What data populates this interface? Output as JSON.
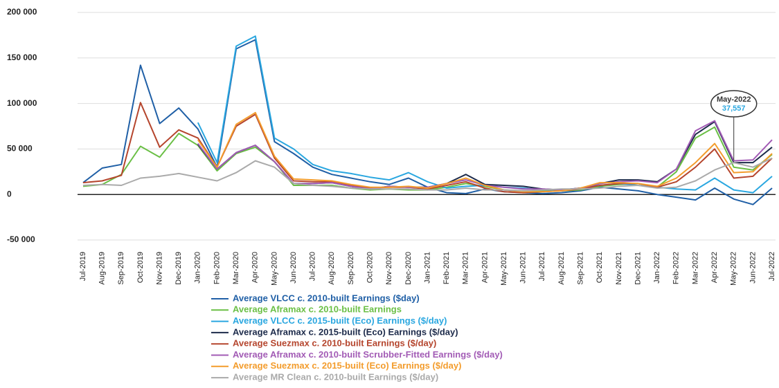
{
  "chart_data": {
    "type": "line",
    "categories": [
      "Jul-2019",
      "Aug-2019",
      "Sep-2019",
      "Oct-2019",
      "Nov-2019",
      "Dec-2019",
      "Jan-2020",
      "Feb-2020",
      "Mar-2020",
      "Apr-2020",
      "May-2020",
      "Jun-2020",
      "Jul-2020",
      "Aug-2020",
      "Sep-2020",
      "Oct-2020",
      "Nov-2020",
      "Dec-2020",
      "Jan-2021",
      "Feb-2021",
      "Mar-2021",
      "Apr-2021",
      "May-2021",
      "Jun-2021",
      "Jul-2021",
      "Aug-2021",
      "Sep-2021",
      "Oct-2021",
      "Nov-2021",
      "Dec-2021",
      "Jan-2022",
      "Feb-2022",
      "Mar-2022",
      "Apr-2022",
      "May-2022",
      "Jun-2022",
      "Jul-2022"
    ],
    "series": [
      {
        "name": "Average VLCC c. 2010-built Earnings ($day)",
        "color": "#1f5fa6",
        "values": [
          13000,
          29000,
          33000,
          142000,
          78000,
          95000,
          72000,
          30000,
          160000,
          170000,
          58000,
          45000,
          30000,
          22000,
          18000,
          14000,
          11000,
          18000,
          8000,
          2000,
          1000,
          6000,
          3000,
          2000,
          1000,
          2000,
          4000,
          8000,
          6000,
          4000,
          0,
          -3000,
          -6000,
          7000,
          -5000,
          -11000,
          7000
        ]
      },
      {
        "name": "Average Aframax c. 2010-built Earnings",
        "color": "#6abf45",
        "values": [
          9000,
          11000,
          22000,
          53000,
          41000,
          67000,
          54000,
          26000,
          45000,
          52000,
          36000,
          10000,
          10000,
          10000,
          7000,
          5000,
          6000,
          5000,
          5000,
          8000,
          12000,
          9000,
          5000,
          4000,
          4000,
          4000,
          5000,
          9000,
          11000,
          12000,
          8000,
          25000,
          62000,
          74000,
          30000,
          27000,
          44000
        ]
      },
      {
        "name": "Average VLCC c. 2015-built (Eco) Earnings ($/day)",
        "color": "#2aa7e0",
        "values": [
          null,
          null,
          null,
          null,
          null,
          null,
          79000,
          35000,
          163000,
          174000,
          62000,
          50000,
          33000,
          26000,
          23000,
          19000,
          16000,
          24000,
          14000,
          7000,
          9000,
          10000,
          8000,
          7000,
          5000,
          5000,
          7000,
          10000,
          12000,
          10000,
          8000,
          6000,
          5000,
          18000,
          5000,
          2000,
          20000
        ]
      },
      {
        "name": "Average Aframax c. 2015-built (Eco) Earnings ($/day)",
        "color": "#1c2a4a",
        "values": [
          null,
          null,
          null,
          null,
          null,
          null,
          55000,
          28000,
          46000,
          54000,
          36000,
          12000,
          12000,
          13000,
          9000,
          6000,
          9000,
          8000,
          8000,
          12000,
          22000,
          11000,
          10000,
          9000,
          6000,
          5000,
          7000,
          12000,
          16000,
          16000,
          14000,
          28000,
          66000,
          80000,
          35000,
          35000,
          52000
        ]
      },
      {
        "name": "Average Suezmax c. 2010-built Earnings ($/day)",
        "color": "#b5452d",
        "values": [
          13000,
          15000,
          21000,
          101000,
          52000,
          71000,
          62000,
          30000,
          75000,
          88000,
          40000,
          15000,
          14000,
          14000,
          10000,
          7000,
          8000,
          8000,
          6000,
          10000,
          14000,
          7000,
          3000,
          2000,
          3000,
          4000,
          6000,
          10000,
          12000,
          12000,
          8000,
          14000,
          30000,
          50000,
          18000,
          20000,
          40000
        ]
      },
      {
        "name": "Average Aframax c. 2010-built Scrubber-Fitted Earnings ($/day)",
        "color": "#a25bb5",
        "values": [
          null,
          null,
          null,
          null,
          null,
          null,
          56000,
          28000,
          46000,
          54000,
          36000,
          12000,
          12000,
          13000,
          9000,
          6000,
          9000,
          8000,
          8000,
          12000,
          16000,
          10000,
          8000,
          6000,
          6000,
          5000,
          7000,
          12000,
          14000,
          15000,
          13000,
          28000,
          70000,
          81000,
          37000,
          38000,
          60000
        ]
      },
      {
        "name": "Average Suezmax c. 2015-built (Eco) Earnings ($/day)",
        "color": "#f39c2c",
        "values": [
          null,
          null,
          null,
          null,
          null,
          null,
          60000,
          30000,
          77000,
          90000,
          42000,
          17000,
          16000,
          15000,
          11000,
          8000,
          8000,
          9000,
          7000,
          12000,
          18000,
          10000,
          5000,
          3000,
          3000,
          4000,
          7000,
          13000,
          13000,
          12000,
          9000,
          18000,
          35000,
          56000,
          24000,
          25000,
          45000
        ]
      },
      {
        "name": "Average MR Clean c. 2010-built Earnings ($/day)",
        "color": "#aaaaaa",
        "values": [
          10000,
          11000,
          10000,
          18000,
          20000,
          23000,
          19000,
          15000,
          24000,
          37000,
          30000,
          12000,
          10000,
          9000,
          7000,
          6000,
          6000,
          6000,
          5000,
          5000,
          7000,
          5000,
          5000,
          4000,
          5000,
          6000,
          6000,
          7000,
          9000,
          10000,
          7000,
          8000,
          15000,
          27000,
          35000,
          30000,
          40000
        ]
      }
    ],
    "ylim": [
      -50000,
      200000
    ],
    "yticks": [
      {
        "value": -50000,
        "label": "-50 000"
      },
      0,
      {
        "value": 50000,
        "label": "50 000"
      },
      {
        "value": 100000,
        "label": "100 000"
      },
      {
        "value": 150000,
        "label": "150 000"
      },
      {
        "value": 200000,
        "label": "200 000"
      }
    ],
    "grid": true,
    "annotation": {
      "category": "May-2022",
      "value": 37557,
      "label": "37,557"
    }
  }
}
